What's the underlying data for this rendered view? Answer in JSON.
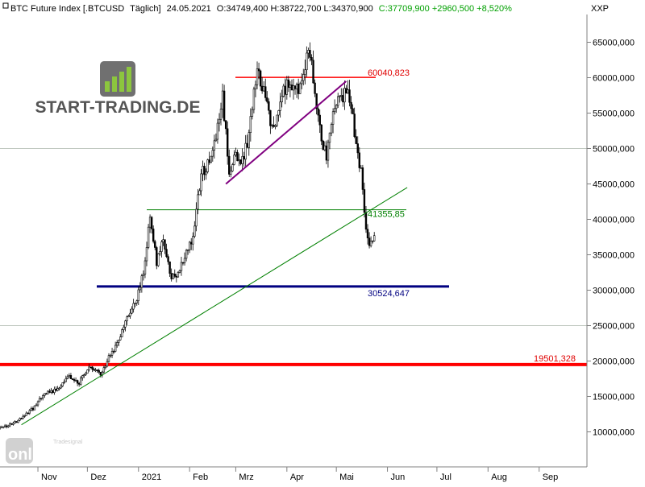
{
  "header": {
    "symbol": "BTC Future Index [.BTCUSD",
    "period": "Täglich]",
    "date": "24.05.2021",
    "ohlc_text": "O:34749,400 H:38722,700 L:34370,900",
    "close_change_text": "C:37709,900 +2960,500 +8,520%",
    "axis_unit": "XXP"
  },
  "watermark": {
    "brand": "START-TRADING.DE",
    "provider_top": "Tradesignal",
    "provider_bottom": "online"
  },
  "colors": {
    "candle": "#000000",
    "background": "#ffffff",
    "grid": "#c0c8c0",
    "axis_line": "#808080",
    "support_blue": "#000080",
    "support_red": "#ff0000",
    "resistance_red": "#ff0000",
    "trend_green": "#008000",
    "trend_purple": "#800080",
    "header_green": "#00a000",
    "label_red": "#e00000",
    "label_green": "#008000",
    "label_navy": "#000080",
    "brand_green": "#6a9a1e",
    "brand_gray": "#333333"
  },
  "chart_data": {
    "type": "candlestick",
    "title": "BTC Future Index [.BTCUSD  Täglich] 24.05.2021",
    "y_axis": {
      "ylim": [
        5000000,
        66000000
      ],
      "ticks": [
        10000000,
        15000000,
        20000000,
        25000000,
        30000000,
        35000000,
        40000000,
        45000000,
        50000000,
        55000000,
        60000000,
        65000000
      ],
      "tick_labels": [
        "10000,000",
        "15000,000",
        "20000,000",
        "25000,000",
        "30000,000",
        "35000,000",
        "40000,000",
        "45000,000",
        "50000,000",
        "55000,000",
        "60000,000",
        "65000,000"
      ],
      "grid_lines": [
        25000000,
        50000000
      ]
    },
    "x_axis": {
      "tick_labels": [
        "Nov",
        "Dez",
        "2021",
        "Feb",
        "Mrz",
        "Apr",
        "Mai",
        "Jun",
        "Jul",
        "Aug",
        "Sep"
      ],
      "tick_dates": [
        "2020-11-01",
        "2020-12-01",
        "2021-01-01",
        "2021-02-01",
        "2021-03-01",
        "2021-04-01",
        "2021-05-01",
        "2021-06-01",
        "2021-07-01",
        "2021-08-01",
        "2021-09-01"
      ],
      "range": [
        "2020-10-09",
        "2021-09-30"
      ]
    },
    "price_samples": [
      [
        "2020-10-09",
        10500000
      ],
      [
        "2020-10-19",
        11400000
      ],
      [
        "2020-10-29",
        13300000
      ],
      [
        "2020-11-05",
        15400000
      ],
      [
        "2020-11-12",
        15900000
      ],
      [
        "2020-11-19",
        17800000
      ],
      [
        "2020-11-26",
        17000000
      ],
      [
        "2020-12-02",
        19200000
      ],
      [
        "2020-12-09",
        18300000
      ],
      [
        "2020-12-16",
        21300000
      ],
      [
        "2020-12-21",
        23400000
      ],
      [
        "2020-12-26",
        26500000
      ],
      [
        "2020-12-31",
        29000000
      ],
      [
        "2021-01-04",
        32500000
      ],
      [
        "2021-01-08",
        40200000
      ],
      [
        "2021-01-12",
        34000000
      ],
      [
        "2021-01-16",
        37000000
      ],
      [
        "2021-01-21",
        31800000
      ],
      [
        "2021-01-25",
        32500000
      ],
      [
        "2021-01-29",
        34500000
      ],
      [
        "2021-02-03",
        37500000
      ],
      [
        "2021-02-08",
        46500000
      ],
      [
        "2021-02-13",
        48000000
      ],
      [
        "2021-02-17",
        52000000
      ],
      [
        "2021-02-21",
        57500000
      ],
      [
        "2021-02-25",
        47000000
      ],
      [
        "2021-03-01",
        49000000
      ],
      [
        "2021-03-05",
        48500000
      ],
      [
        "2021-03-08",
        51000000
      ],
      [
        "2021-03-12",
        57500000
      ],
      [
        "2021-03-14",
        60500000
      ],
      [
        "2021-03-18",
        58500000
      ],
      [
        "2021-03-22",
        54000000
      ],
      [
        "2021-03-25",
        52500000
      ],
      [
        "2021-03-29",
        58000000
      ],
      [
        "2021-04-02",
        59000000
      ],
      [
        "2021-04-06",
        58000000
      ],
      [
        "2021-04-10",
        59500000
      ],
      [
        "2021-04-13",
        63500000
      ],
      [
        "2021-04-16",
        61500000
      ],
      [
        "2021-04-19",
        55000000
      ],
      [
        "2021-04-22",
        51500000
      ],
      [
        "2021-04-25",
        49000000
      ],
      [
        "2021-04-29",
        54500000
      ],
      [
        "2021-05-02",
        56500000
      ],
      [
        "2021-05-05",
        57500000
      ],
      [
        "2021-05-08",
        58500000
      ],
      [
        "2021-05-10",
        56500000
      ],
      [
        "2021-05-13",
        50000000
      ],
      [
        "2021-05-16",
        46500000
      ],
      [
        "2021-05-19",
        38500000
      ],
      [
        "2021-05-21",
        36500000
      ],
      [
        "2021-05-24",
        37709900
      ]
    ],
    "levels": [
      {
        "name": "resistance",
        "value": 60040823,
        "label": "60040,823",
        "color": "#ff0000"
      },
      {
        "name": "neckline",
        "value": 41355850,
        "label": "41355,85",
        "color": "#008000"
      },
      {
        "name": "support",
        "value": 30524647,
        "label": "30524,647",
        "color": "#000080"
      },
      {
        "name": "major-support",
        "value": 19501328,
        "label": "19501,328",
        "color": "#ff0000"
      }
    ],
    "trendlines": [
      {
        "name": "long-uptrend",
        "color": "#008000",
        "from": [
          "2020-10-22",
          11000000
        ],
        "to": [
          "2021-06-13",
          44500000
        ]
      },
      {
        "name": "rising-wedge",
        "color": "#800080",
        "from": [
          "2021-02-23",
          45000000
        ],
        "to": [
          "2021-05-07",
          59500000
        ]
      }
    ]
  }
}
